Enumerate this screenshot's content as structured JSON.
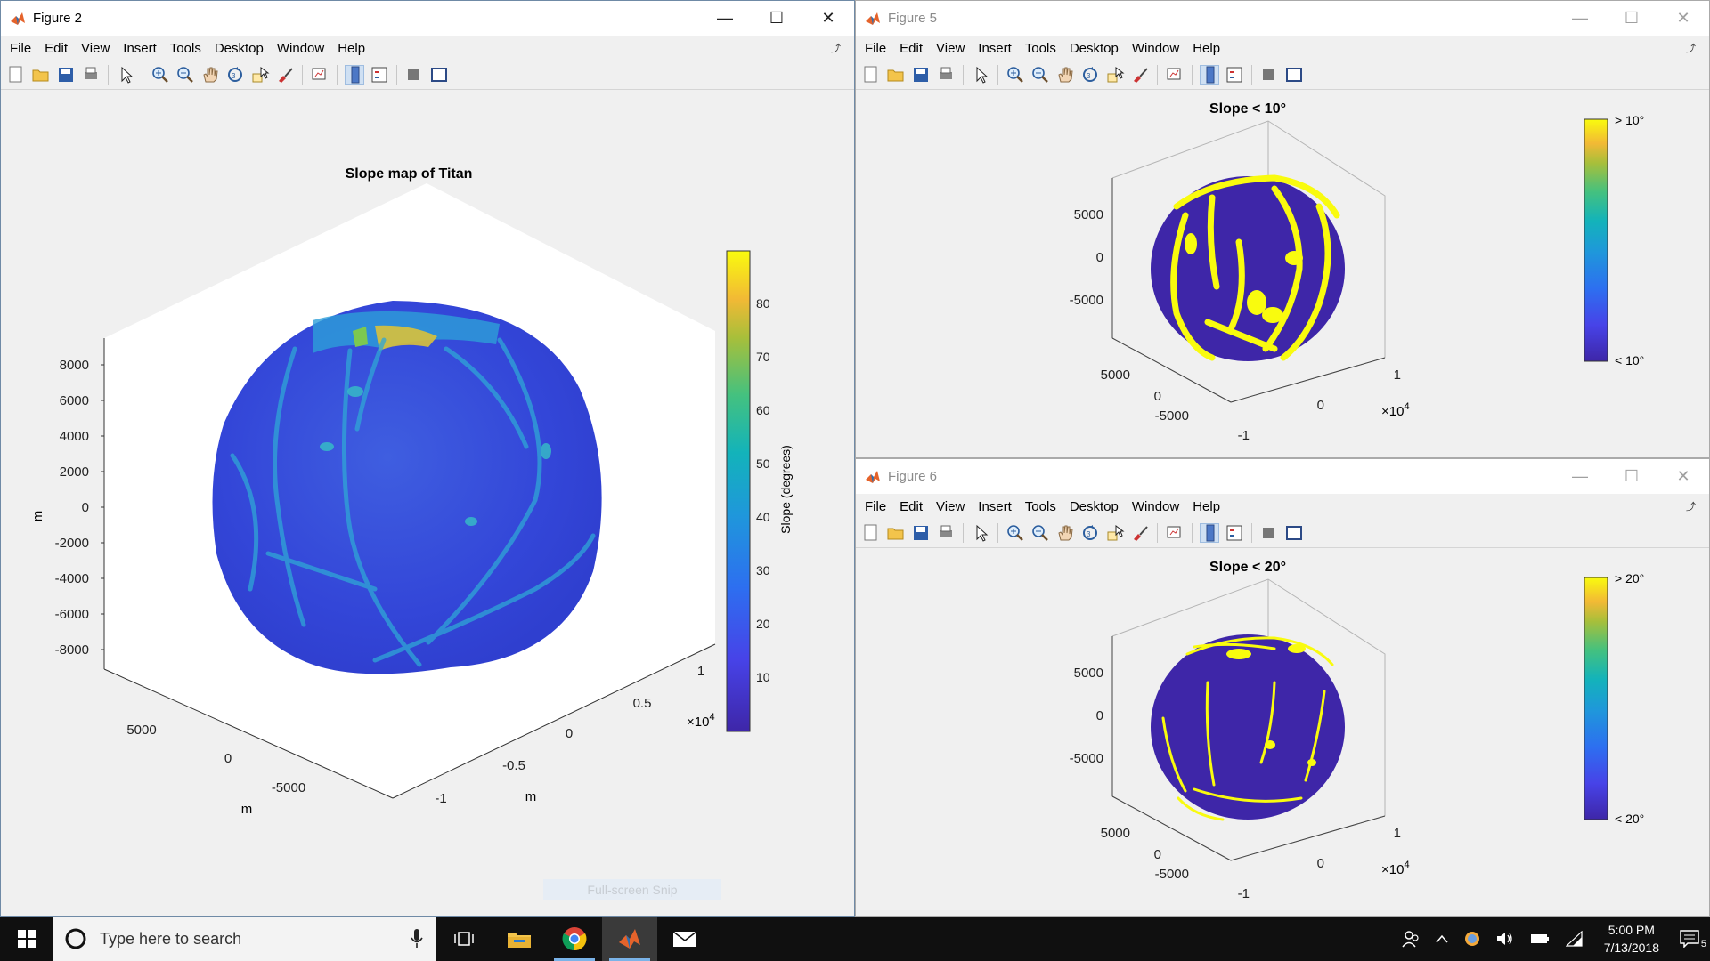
{
  "menu_items": [
    "File",
    "Edit",
    "View",
    "Insert",
    "Tools",
    "Desktop",
    "Window",
    "Help"
  ],
  "windows": {
    "fig2": {
      "title": "Figure 2",
      "plot_title": "Slope map of Titan",
      "zaxis_label": "m",
      "xaxis_label": "m",
      "yaxis_label": "m",
      "zticks": [
        "8000",
        "6000",
        "4000",
        "2000",
        "0",
        "-2000",
        "-4000",
        "-6000",
        "-8000"
      ],
      "xticks": [
        "5000",
        "0",
        "-5000"
      ],
      "yticks": [
        "1",
        "0.5",
        "0",
        "-0.5",
        "-1"
      ],
      "exponent_base": "×10",
      "exponent_power": "4",
      "colorbar_ticks": [
        "80",
        "70",
        "60",
        "50",
        "40",
        "30",
        "20",
        "10"
      ],
      "colorbar_label": "Slope (degrees)"
    },
    "fig5": {
      "title": "Figure 5",
      "plot_title": "Slope < 10°",
      "zticks": [
        "5000",
        "0",
        "-5000"
      ],
      "xticks": [
        "5000",
        "0",
        "-5000"
      ],
      "yticks": [
        "1",
        "0",
        "-1"
      ],
      "exponent_base": "×10",
      "exponent_power": "4",
      "cb_top": "> 10°",
      "cb_bottom": "< 10°"
    },
    "fig6": {
      "title": "Figure 6",
      "plot_title": "Slope < 20°",
      "zticks": [
        "5000",
        "0",
        "-5000"
      ],
      "xticks": [
        "5000",
        "0",
        "-5000"
      ],
      "yticks": [
        "1",
        "0",
        "-1"
      ],
      "exponent_base": "×10",
      "exponent_power": "4",
      "cb_top": "> 20°",
      "cb_bottom": "< 20°"
    }
  },
  "snip_overlay": "Full-screen Snip",
  "taskbar": {
    "search_placeholder": "Type here to search",
    "time": "5:00 PM",
    "date": "7/13/2018",
    "notification_count": "5"
  },
  "colors": {
    "parula_dark": "#3e26a8",
    "parula_blue": "#2e5ef0",
    "parula_yellow": "#f9fb0e",
    "accent": "#7ab3e8"
  }
}
